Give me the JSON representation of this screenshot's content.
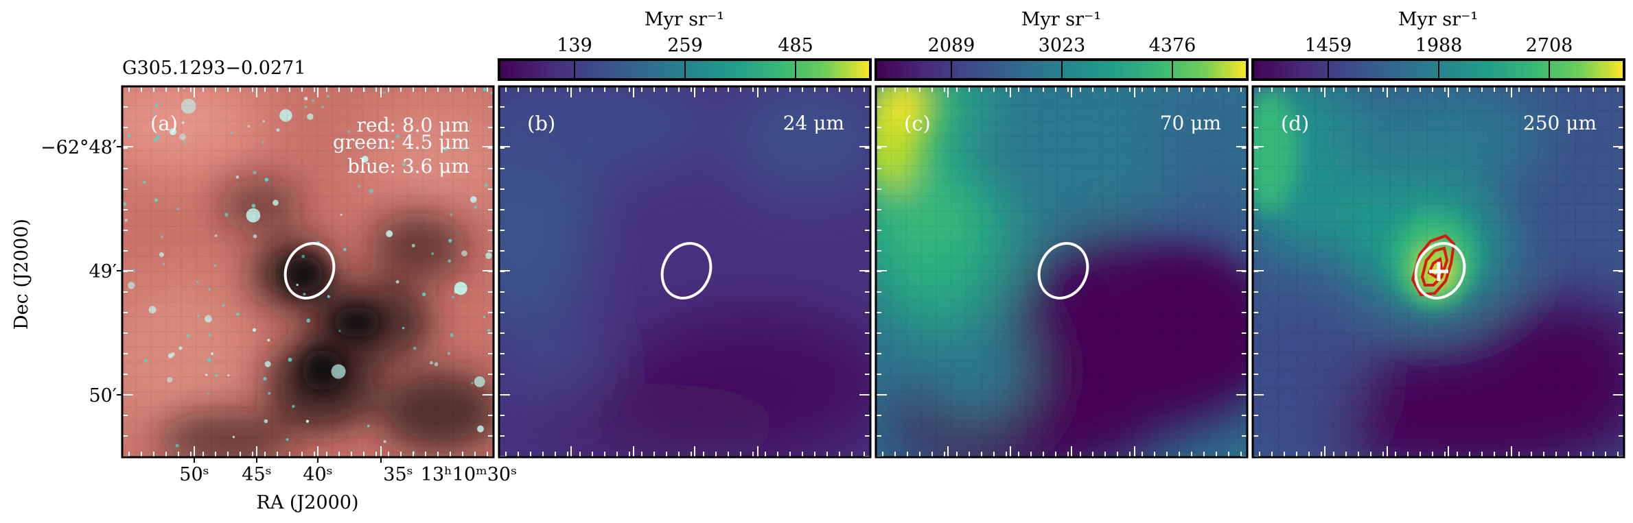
{
  "figure": {
    "source_name": "G305.1293−0.0271",
    "ra_label": "RA (J2000)",
    "dec_label": "Dec (J2000)",
    "ra_ticks": [
      "50ˢ",
      "45ˢ",
      "40ˢ",
      "35ˢ",
      "13ʰ10ᵐ30ˢ"
    ],
    "dec_ticks": [
      "−62°48′",
      "49′",
      "50′"
    ],
    "colorbar_unit": "Myr sr⁻¹"
  },
  "panels": [
    {
      "letter": "(a)",
      "kind": "rgb",
      "legend": [
        "red: 8.0 μm",
        "green: 4.5 μm",
        "blue: 3.6 μm"
      ],
      "colors": {
        "nebula": "#c9736a",
        "dark": "#120c0d",
        "stars": "#bff5ee"
      }
    },
    {
      "letter": "(b)",
      "kind": "map",
      "wavelength": "24 μm",
      "colorbar_ticks": [
        "139",
        "259",
        "485"
      ]
    },
    {
      "letter": "(c)",
      "kind": "map",
      "wavelength": "70 μm",
      "colorbar_ticks": [
        "2089",
        "3023",
        "4376"
      ]
    },
    {
      "letter": "(d)",
      "kind": "map",
      "wavelength": "250 μm",
      "colorbar_ticks": [
        "1459",
        "1988",
        "2708"
      ],
      "contour_color": "#d41a12",
      "marker": "cross"
    }
  ],
  "colormap": [
    "#440154",
    "#3b528b",
    "#21908d",
    "#5dc963",
    "#fde725"
  ]
}
